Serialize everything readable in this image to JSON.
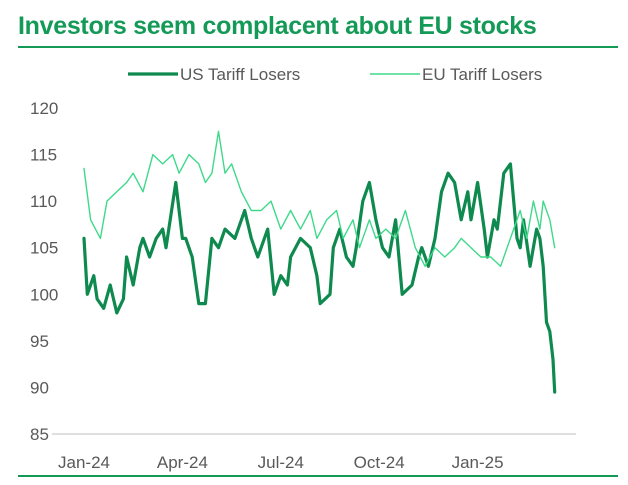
{
  "chart_data": {
    "type": "line",
    "title": "Investors seem complacent about EU stocks",
    "xlabel": "",
    "ylabel": "",
    "ylim": [
      85,
      120
    ],
    "yticks": [
      120,
      115,
      110,
      105,
      100,
      95,
      90,
      85
    ],
    "xlim": [
      0,
      15
    ],
    "xticks": [
      {
        "label": "Jan-24",
        "x": 0
      },
      {
        "label": "Apr-24",
        "x": 3
      },
      {
        "label": "Jul-24",
        "x": 6
      },
      {
        "label": "Oct-24",
        "x": 9
      },
      {
        "label": "Jan-25",
        "x": 12
      }
    ],
    "grid": false,
    "legend": "top",
    "series": [
      {
        "name": "US Tariff Losers",
        "color": "#0e8a4f",
        "x": [
          0,
          0.1,
          0.3,
          0.4,
          0.6,
          0.8,
          1.0,
          1.2,
          1.3,
          1.5,
          1.7,
          1.8,
          2.0,
          2.2,
          2.4,
          2.5,
          2.8,
          3.0,
          3.1,
          3.3,
          3.5,
          3.7,
          3.9,
          4.1,
          4.3,
          4.6,
          4.9,
          5.1,
          5.3,
          5.6,
          5.8,
          6.0,
          6.2,
          6.3,
          6.6,
          6.9,
          7.1,
          7.2,
          7.5,
          7.6,
          7.8,
          8.0,
          8.2,
          8.3,
          8.5,
          8.7,
          8.9,
          9.1,
          9.3,
          9.5,
          9.7,
          10.0,
          10.2,
          10.3,
          10.5,
          10.7,
          10.9,
          11.1,
          11.3,
          11.5,
          11.7,
          11.8,
          12.0,
          12.2,
          12.3,
          12.5,
          12.6,
          12.8,
          13.0,
          13.2,
          13.3,
          13.4,
          13.6,
          13.8,
          13.9,
          14.0,
          14.1,
          14.2,
          14.3,
          14.35
        ],
        "values": [
          106,
          100,
          102,
          99.5,
          98.5,
          101,
          98,
          99.5,
          104,
          101,
          105,
          106,
          104,
          106,
          107,
          105,
          112,
          106,
          106,
          104,
          99,
          99,
          106,
          105,
          107,
          106,
          109,
          106,
          104,
          107,
          100,
          102,
          101,
          104,
          106,
          105,
          102,
          99,
          100,
          105,
          107,
          104,
          103,
          105,
          110,
          112,
          108,
          105,
          104,
          108,
          100,
          101,
          104,
          105,
          103,
          106,
          111,
          113,
          112,
          108,
          111,
          108,
          112,
          107,
          104,
          108,
          107,
          113,
          114,
          106,
          105,
          108,
          103,
          107,
          106,
          103,
          97,
          96,
          93,
          89.5
        ]
      },
      {
        "name": "EU Tariff Losers",
        "color": "#3ed98a",
        "x": [
          0,
          0.2,
          0.5,
          0.7,
          1.0,
          1.3,
          1.5,
          1.8,
          2.1,
          2.4,
          2.7,
          2.9,
          3.2,
          3.5,
          3.7,
          3.9,
          4.1,
          4.3,
          4.5,
          4.8,
          5.1,
          5.4,
          5.7,
          6.0,
          6.3,
          6.6,
          6.9,
          7.1,
          7.4,
          7.7,
          7.9,
          8.2,
          8.4,
          8.7,
          8.9,
          9.2,
          9.5,
          9.8,
          10.1,
          10.4,
          10.7,
          11.0,
          11.3,
          11.5,
          11.8,
          12.1,
          12.4,
          12.7,
          12.9,
          13.1,
          13.3,
          13.5,
          13.7,
          13.9,
          14.0,
          14.2,
          14.35
        ],
        "values": [
          113.5,
          108,
          106,
          110,
          111,
          112,
          113,
          111,
          115,
          114,
          115,
          113,
          115,
          114,
          112,
          113,
          117.5,
          113,
          114,
          111,
          109,
          109,
          110,
          107,
          109,
          107,
          109,
          106,
          108,
          109,
          106,
          108,
          105,
          108,
          106,
          107,
          106,
          109,
          105,
          103,
          105,
          104,
          105,
          106,
          105,
          104,
          104,
          103,
          105,
          107,
          109,
          106,
          110,
          107,
          110,
          108,
          105
        ]
      }
    ]
  }
}
